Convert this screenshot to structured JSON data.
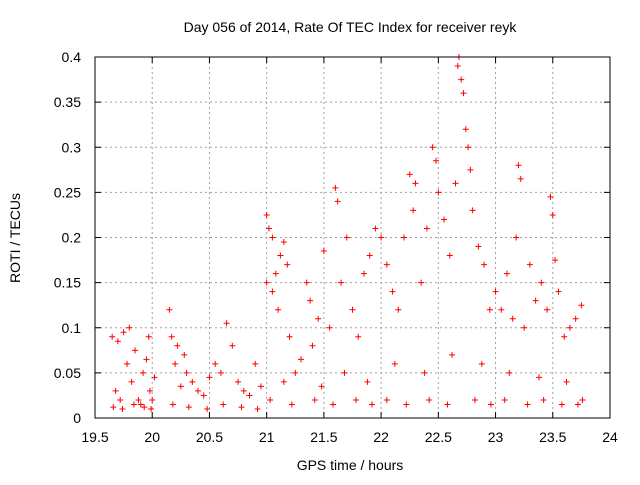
{
  "chart_data": {
    "type": "scatter",
    "title": "Day 056 of 2014, Rate Of TEC Index for receiver reyk",
    "xlabel": "GPS time / hours",
    "ylabel": "ROTI / TECUs",
    "xlim": [
      19.5,
      24.0
    ],
    "ylim": [
      0,
      0.4
    ],
    "x_ticks": [
      19.5,
      20,
      20.5,
      21,
      21.5,
      22,
      22.5,
      23,
      23.5,
      24
    ],
    "x_tick_labels": [
      "19.5",
      "20",
      "20.5",
      "21",
      "21.5",
      "22",
      "22.5",
      "23",
      "23.5",
      "24"
    ],
    "y_ticks": [
      0,
      0.05,
      0.1,
      0.15,
      0.2,
      0.25,
      0.3,
      0.35,
      0.4
    ],
    "y_tick_labels": [
      "0",
      "0.05",
      "0.1",
      "0.15",
      "0.2",
      "0.25",
      "0.3",
      "0.35",
      "0.4"
    ],
    "grid": true,
    "marker": "+",
    "series": [
      {
        "name": "ROTI",
        "color": "#ff0000",
        "points": [
          [
            19.65,
            0.09
          ],
          [
            19.68,
            0.03
          ],
          [
            19.7,
            0.085
          ],
          [
            19.72,
            0.02
          ],
          [
            19.75,
            0.095
          ],
          [
            19.78,
            0.06
          ],
          [
            19.8,
            0.1
          ],
          [
            19.82,
            0.04
          ],
          [
            19.85,
            0.075
          ],
          [
            19.88,
            0.02
          ],
          [
            19.9,
            0.015
          ],
          [
            19.92,
            0.05
          ],
          [
            19.95,
            0.065
          ],
          [
            19.97,
            0.09
          ],
          [
            19.98,
            0.03
          ],
          [
            20.0,
            0.02
          ],
          [
            20.02,
            0.045
          ],
          [
            19.66,
            0.012
          ],
          [
            19.74,
            0.01
          ],
          [
            19.84,
            0.015
          ],
          [
            19.93,
            0.012
          ],
          [
            19.99,
            0.01
          ],
          [
            20.15,
            0.12
          ],
          [
            20.17,
            0.09
          ],
          [
            20.2,
            0.06
          ],
          [
            20.22,
            0.08
          ],
          [
            20.25,
            0.035
          ],
          [
            20.28,
            0.07
          ],
          [
            20.3,
            0.05
          ],
          [
            20.35,
            0.04
          ],
          [
            20.4,
            0.03
          ],
          [
            20.45,
            0.025
          ],
          [
            20.5,
            0.045
          ],
          [
            20.55,
            0.06
          ],
          [
            20.6,
            0.05
          ],
          [
            20.65,
            0.105
          ],
          [
            20.7,
            0.08
          ],
          [
            20.75,
            0.04
          ],
          [
            20.8,
            0.03
          ],
          [
            20.85,
            0.025
          ],
          [
            20.9,
            0.06
          ],
          [
            20.95,
            0.035
          ],
          [
            20.18,
            0.015
          ],
          [
            20.32,
            0.012
          ],
          [
            20.48,
            0.01
          ],
          [
            20.62,
            0.015
          ],
          [
            20.78,
            0.012
          ],
          [
            20.92,
            0.01
          ],
          [
            21.0,
            0.225
          ],
          [
            21.02,
            0.21
          ],
          [
            21.05,
            0.2
          ],
          [
            21.0,
            0.15
          ],
          [
            21.05,
            0.14
          ],
          [
            21.08,
            0.16
          ],
          [
            21.1,
            0.12
          ],
          [
            21.12,
            0.18
          ],
          [
            21.15,
            0.195
          ],
          [
            21.18,
            0.17
          ],
          [
            21.2,
            0.09
          ],
          [
            21.25,
            0.05
          ],
          [
            21.3,
            0.065
          ],
          [
            21.35,
            0.15
          ],
          [
            21.38,
            0.13
          ],
          [
            21.4,
            0.08
          ],
          [
            21.45,
            0.11
          ],
          [
            21.5,
            0.185
          ],
          [
            21.55,
            0.1
          ],
          [
            21.6,
            0.255
          ],
          [
            21.62,
            0.24
          ],
          [
            21.65,
            0.15
          ],
          [
            21.7,
            0.2
          ],
          [
            21.75,
            0.12
          ],
          [
            21.8,
            0.09
          ],
          [
            21.85,
            0.16
          ],
          [
            21.9,
            0.18
          ],
          [
            21.95,
            0.21
          ],
          [
            21.03,
            0.02
          ],
          [
            21.22,
            0.015
          ],
          [
            21.42,
            0.02
          ],
          [
            21.58,
            0.015
          ],
          [
            21.78,
            0.02
          ],
          [
            21.92,
            0.015
          ],
          [
            21.15,
            0.04
          ],
          [
            21.48,
            0.035
          ],
          [
            21.68,
            0.05
          ],
          [
            21.88,
            0.04
          ],
          [
            22.0,
            0.2
          ],
          [
            22.05,
            0.17
          ],
          [
            22.1,
            0.14
          ],
          [
            22.15,
            0.12
          ],
          [
            22.2,
            0.2
          ],
          [
            22.25,
            0.27
          ],
          [
            22.28,
            0.23
          ],
          [
            22.3,
            0.26
          ],
          [
            22.35,
            0.15
          ],
          [
            22.4,
            0.21
          ],
          [
            22.45,
            0.3
          ],
          [
            22.48,
            0.285
          ],
          [
            22.5,
            0.25
          ],
          [
            22.55,
            0.22
          ],
          [
            22.6,
            0.18
          ],
          [
            22.65,
            0.26
          ],
          [
            22.67,
            0.39
          ],
          [
            22.68,
            0.4
          ],
          [
            22.7,
            0.375
          ],
          [
            22.72,
            0.36
          ],
          [
            22.74,
            0.32
          ],
          [
            22.76,
            0.3
          ],
          [
            22.78,
            0.275
          ],
          [
            22.8,
            0.23
          ],
          [
            22.85,
            0.19
          ],
          [
            22.9,
            0.17
          ],
          [
            22.95,
            0.12
          ],
          [
            22.05,
            0.02
          ],
          [
            22.22,
            0.015
          ],
          [
            22.42,
            0.02
          ],
          [
            22.58,
            0.015
          ],
          [
            22.82,
            0.02
          ],
          [
            22.96,
            0.015
          ],
          [
            22.12,
            0.06
          ],
          [
            22.38,
            0.05
          ],
          [
            22.62,
            0.07
          ],
          [
            22.88,
            0.06
          ],
          [
            23.0,
            0.14
          ],
          [
            23.05,
            0.12
          ],
          [
            23.1,
            0.16
          ],
          [
            23.15,
            0.11
          ],
          [
            23.18,
            0.2
          ],
          [
            23.2,
            0.28
          ],
          [
            23.22,
            0.265
          ],
          [
            23.25,
            0.1
          ],
          [
            23.3,
            0.17
          ],
          [
            23.35,
            0.13
          ],
          [
            23.4,
            0.15
          ],
          [
            23.45,
            0.12
          ],
          [
            23.48,
            0.245
          ],
          [
            23.5,
            0.225
          ],
          [
            23.52,
            0.175
          ],
          [
            23.55,
            0.14
          ],
          [
            23.6,
            0.09
          ],
          [
            23.65,
            0.1
          ],
          [
            23.7,
            0.11
          ],
          [
            23.75,
            0.125
          ],
          [
            23.76,
            0.02
          ],
          [
            23.72,
            0.015
          ],
          [
            23.08,
            0.02
          ],
          [
            23.28,
            0.015
          ],
          [
            23.42,
            0.02
          ],
          [
            23.58,
            0.015
          ],
          [
            23.12,
            0.05
          ],
          [
            23.38,
            0.045
          ],
          [
            23.62,
            0.04
          ]
        ]
      }
    ]
  }
}
